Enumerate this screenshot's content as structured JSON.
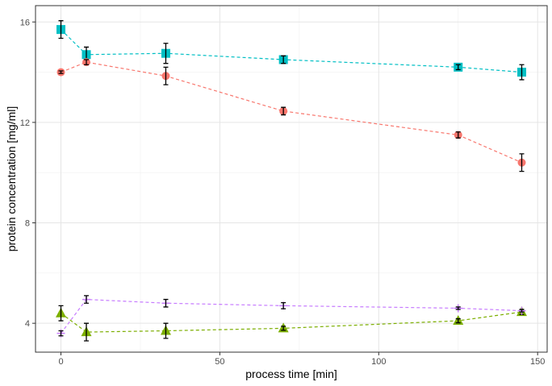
{
  "chart_data": {
    "type": "scatter",
    "title": "",
    "xlabel": "process time [min]",
    "ylabel": "protein concentration [mg/ml]",
    "xlim": [
      -8,
      153
    ],
    "ylim": [
      2.85,
      16.65
    ],
    "x_ticks": [
      0,
      50,
      100,
      150
    ],
    "x_tick_labels": [
      "0",
      "50",
      "100",
      "150"
    ],
    "y_ticks": [
      4,
      8,
      12,
      16
    ],
    "y_tick_labels": [
      "4",
      "8",
      "12",
      "16"
    ],
    "grid": true,
    "legend": "none",
    "series": [
      {
        "color": "#00BFC4",
        "marker": "square",
        "x": [
          0,
          8,
          33,
          70,
          125,
          145
        ],
        "y": [
          15.7,
          14.7,
          14.75,
          14.5,
          14.2,
          14.0
        ],
        "err": [
          0.35,
          0.3,
          0.4,
          0.15,
          0.1,
          0.3
        ]
      },
      {
        "color": "#F8766D",
        "marker": "circle",
        "x": [
          0,
          8,
          33,
          70,
          125,
          145
        ],
        "y": [
          14.0,
          14.4,
          13.85,
          12.45,
          11.5,
          10.4
        ],
        "err": [
          0.05,
          0.1,
          0.35,
          0.15,
          0.12,
          0.35
        ]
      },
      {
        "color": "#7CAE00",
        "marker": "triangle",
        "x": [
          0,
          8,
          33,
          70,
          125,
          145
        ],
        "y": [
          4.4,
          3.65,
          3.7,
          3.8,
          4.1,
          4.45
        ],
        "err": [
          0.3,
          0.35,
          0.3,
          0.08,
          0.08,
          0.1
        ]
      },
      {
        "color": "#C77CFF",
        "marker": "plus",
        "x": [
          0,
          8,
          33,
          70,
          125,
          145
        ],
        "y": [
          3.6,
          4.95,
          4.8,
          4.7,
          4.6,
          4.5
        ],
        "err": [
          0.1,
          0.15,
          0.15,
          0.12,
          0.05,
          0.05
        ]
      }
    ]
  }
}
